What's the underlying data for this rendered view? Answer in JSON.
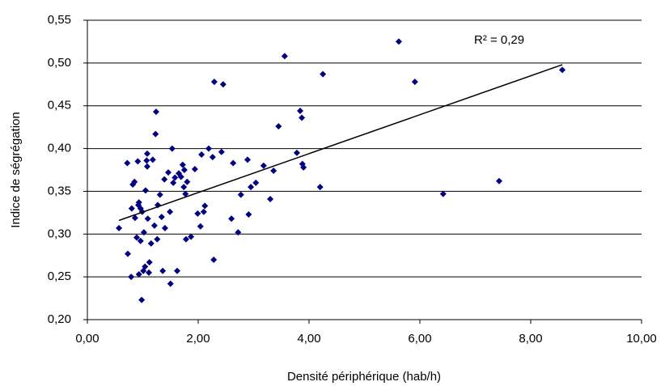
{
  "chart_data": {
    "type": "scatter",
    "x_label": "Densité périphérique (hab/h)",
    "y_label": "Indice de ségrégation",
    "annotation": "R² = 0,29",
    "color": "#000080",
    "grid": true,
    "xlim": [
      0,
      10
    ],
    "ylim": [
      0.2,
      0.55
    ],
    "xticks": [
      {
        "value": 0,
        "label": "0,00"
      },
      {
        "value": 2,
        "label": "2,00"
      },
      {
        "value": 4,
        "label": "4,00"
      },
      {
        "value": 6,
        "label": "6,00"
      },
      {
        "value": 8,
        "label": "8,00"
      },
      {
        "value": 10,
        "label": "10,00"
      }
    ],
    "yticks": [
      {
        "value": 0.2,
        "label": "0,20"
      },
      {
        "value": 0.25,
        "label": "0,25"
      },
      {
        "value": 0.3,
        "label": "0,30"
      },
      {
        "value": 0.35,
        "label": "0,35"
      },
      {
        "value": 0.4,
        "label": "0,40"
      },
      {
        "value": 0.45,
        "label": "0,45"
      },
      {
        "value": 0.5,
        "label": "0,50"
      },
      {
        "value": 0.55,
        "label": "0,55"
      }
    ],
    "x": [
      0.57,
      0.72,
      0.73,
      0.79,
      0.8,
      0.82,
      0.85,
      0.86,
      0.89,
      0.91,
      0.92,
      0.93,
      0.93,
      0.96,
      0.96,
      0.98,
      0.99,
      1.01,
      1.02,
      1.04,
      1.05,
      1.07,
      1.08,
      1.08,
      1.09,
      1.11,
      1.12,
      1.15,
      1.18,
      1.21,
      1.23,
      1.24,
      1.26,
      1.27,
      1.31,
      1.34,
      1.36,
      1.39,
      1.4,
      1.46,
      1.49,
      1.5,
      1.53,
      1.55,
      1.58,
      1.62,
      1.65,
      1.69,
      1.72,
      1.74,
      1.75,
      1.77,
      1.78,
      1.8,
      1.87,
      1.94,
      1.99,
      2.04,
      2.06,
      2.1,
      2.12,
      2.19,
      2.26,
      2.28,
      2.29,
      2.42,
      2.45,
      2.6,
      2.63,
      2.72,
      2.77,
      2.89,
      2.91,
      2.95,
      3.04,
      3.18,
      3.3,
      3.36,
      3.45,
      3.56,
      3.78,
      3.84,
      3.87,
      3.88,
      3.9,
      4.2,
      4.25,
      5.62,
      5.91,
      6.42,
      7.43,
      8.57
    ],
    "values": [
      0.307,
      0.383,
      0.277,
      0.25,
      0.33,
      0.358,
      0.361,
      0.319,
      0.296,
      0.385,
      0.334,
      0.337,
      0.253,
      0.33,
      0.292,
      0.223,
      0.326,
      0.257,
      0.302,
      0.262,
      0.351,
      0.386,
      0.379,
      0.394,
      0.318,
      0.255,
      0.267,
      0.289,
      0.387,
      0.31,
      0.417,
      0.443,
      0.294,
      0.334,
      0.346,
      0.32,
      0.257,
      0.364,
      0.307,
      0.372,
      0.326,
      0.242,
      0.4,
      0.36,
      0.366,
      0.257,
      0.371,
      0.367,
      0.381,
      0.355,
      0.375,
      0.347,
      0.294,
      0.361,
      0.297,
      0.376,
      0.324,
      0.309,
      0.393,
      0.326,
      0.333,
      0.4,
      0.39,
      0.27,
      0.478,
      0.396,
      0.475,
      0.318,
      0.383,
      0.302,
      0.346,
      0.387,
      0.323,
      0.355,
      0.36,
      0.38,
      0.341,
      0.374,
      0.426,
      0.508,
      0.395,
      0.444,
      0.436,
      0.382,
      0.378,
      0.355,
      0.487,
      0.525,
      0.478,
      0.347,
      0.362,
      0.492
    ],
    "trendline": {
      "x": [
        0.57,
        8.57
      ],
      "values": [
        0.316,
        0.498
      ]
    }
  }
}
